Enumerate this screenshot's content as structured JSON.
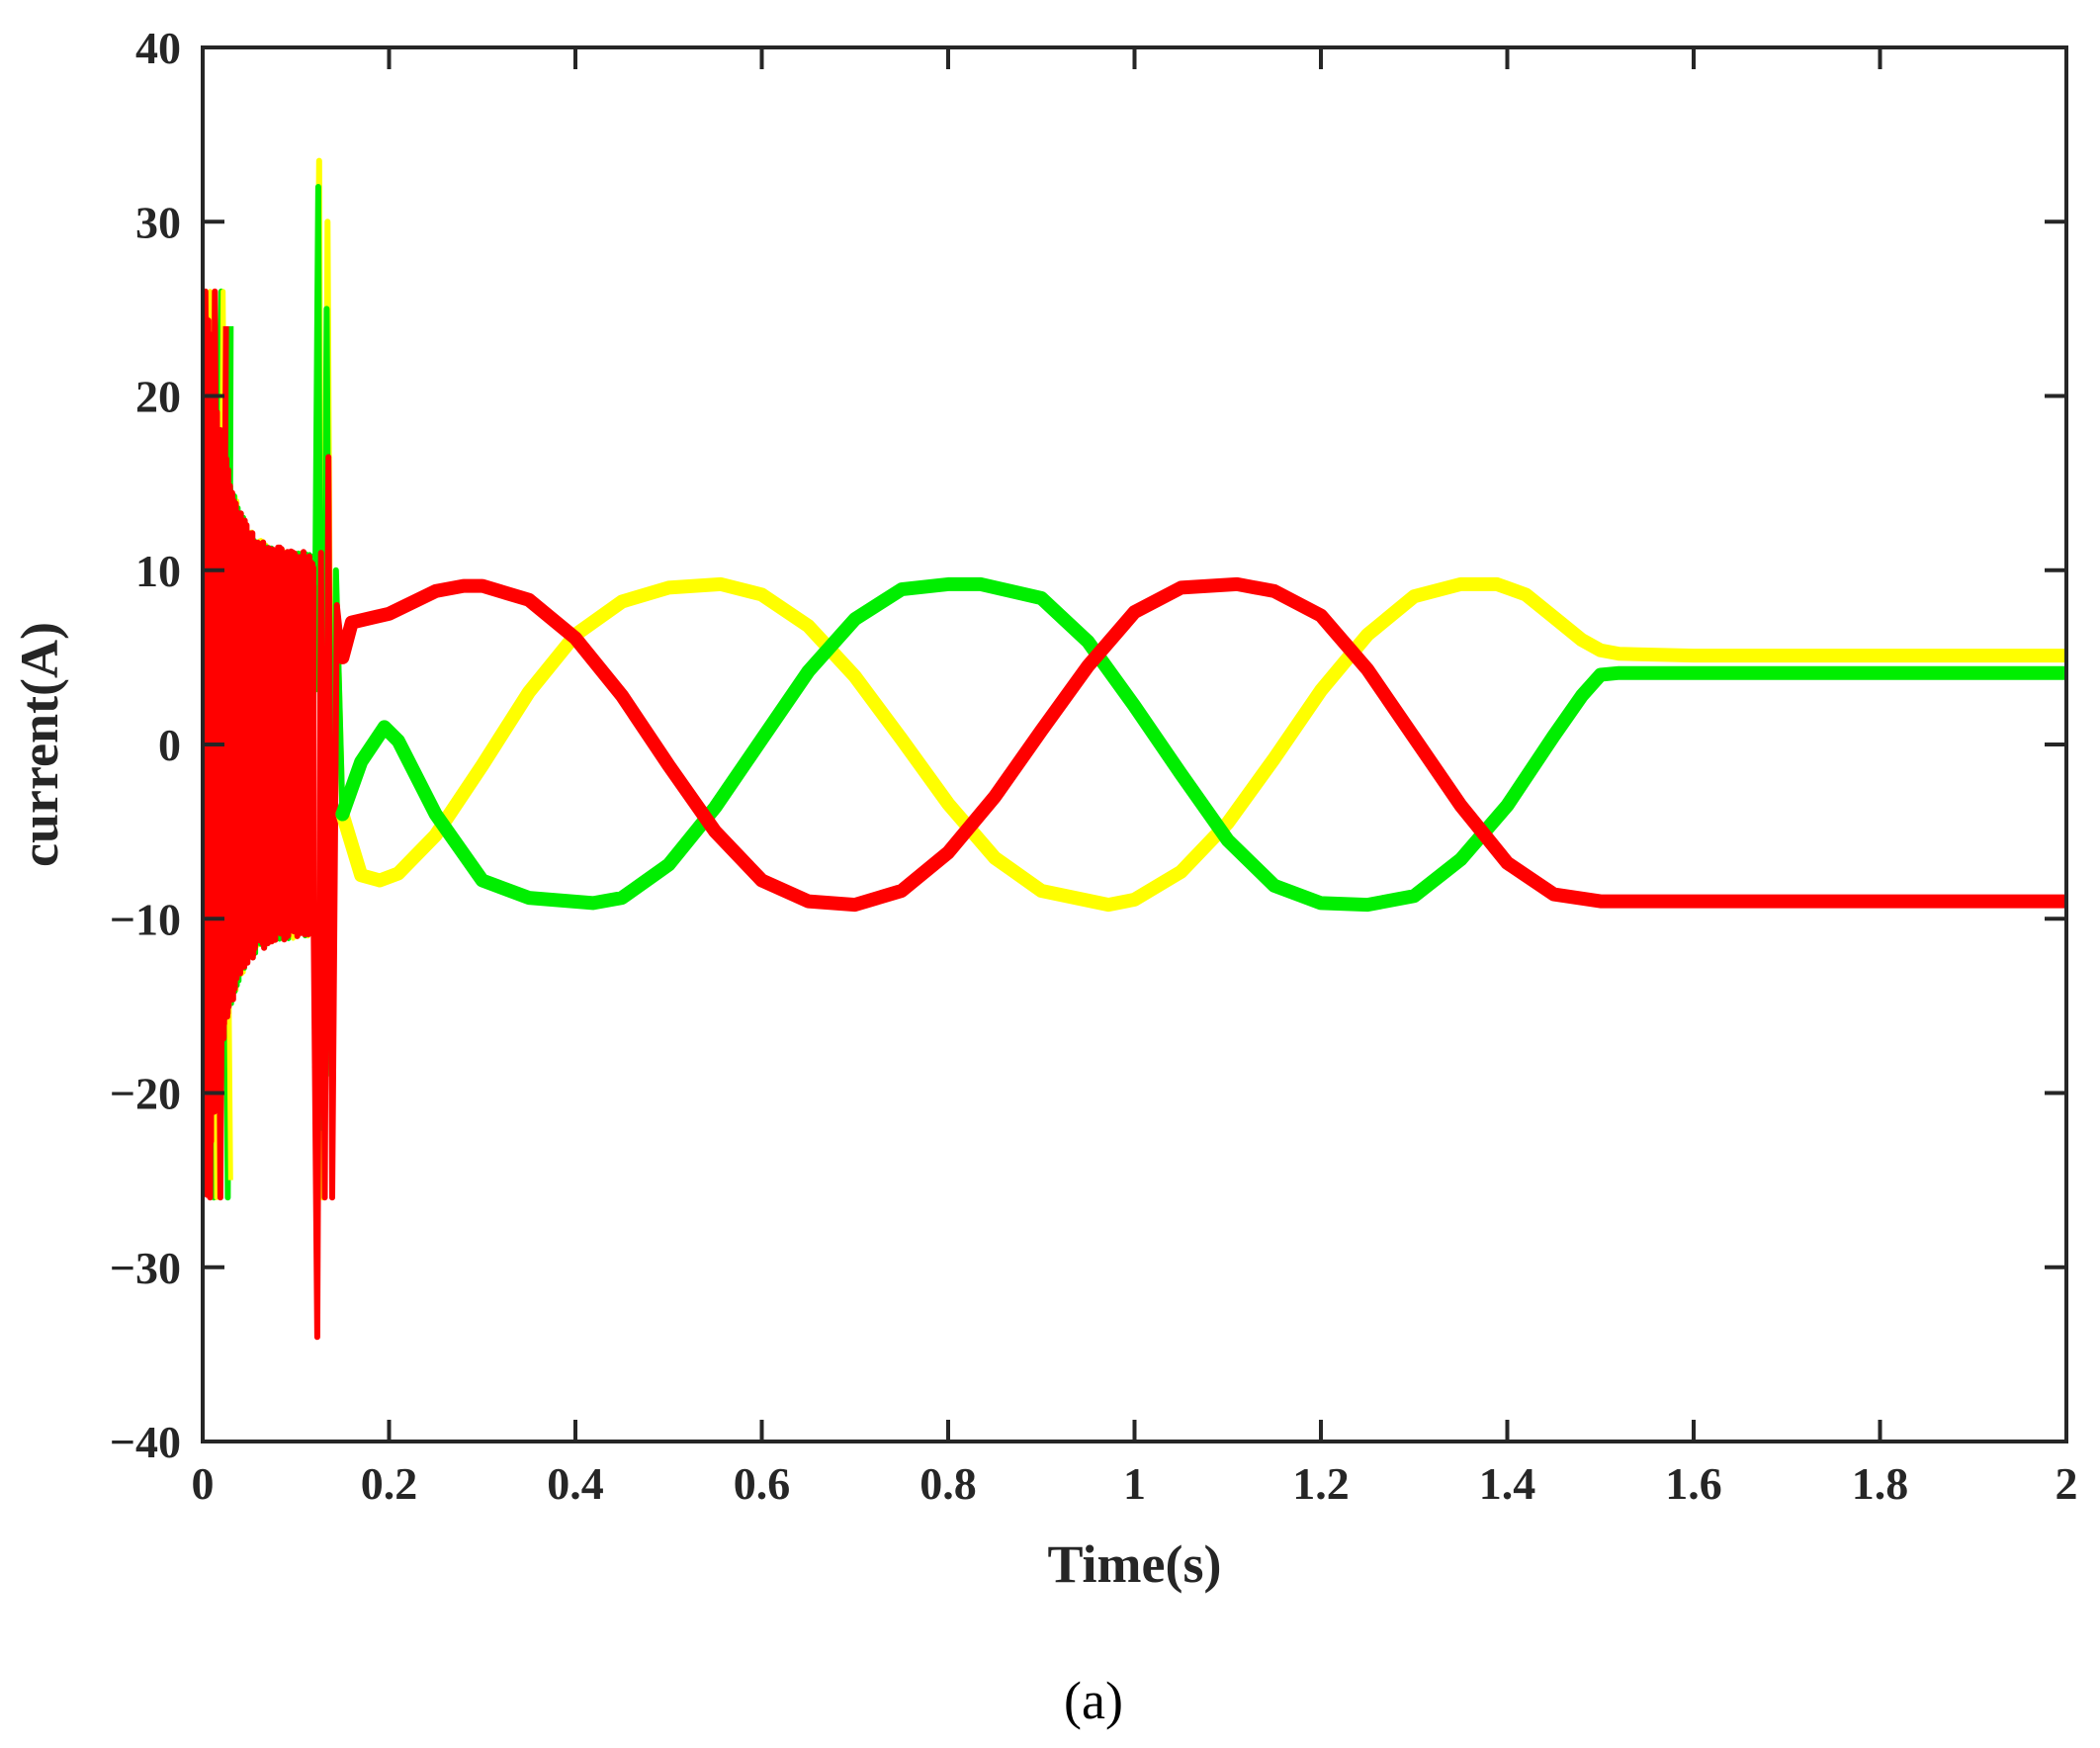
{
  "chart_data": {
    "type": "line",
    "xlabel": "Time(s)",
    "ylabel": "current(A)",
    "xlim": [
      0,
      2
    ],
    "ylim": [
      -40,
      40
    ],
    "xticks": [
      0,
      0.2,
      0.4,
      0.6,
      0.8,
      1,
      1.2,
      1.4,
      1.6,
      1.8,
      2
    ],
    "xtick_labels": [
      "0",
      "0.2",
      "0.4",
      "0.6",
      "0.8",
      "1",
      "1.2",
      "1.4",
      "1.6",
      "1.8",
      "2"
    ],
    "yticks": [
      -40,
      -30,
      -20,
      -10,
      0,
      10,
      20,
      30,
      40
    ],
    "ytick_labels": [
      "−40",
      "−30",
      "−20",
      "−10",
      "0",
      "10",
      "20",
      "30",
      "40"
    ],
    "grid": false,
    "caption": "(a)",
    "series": [
      {
        "color": "#ffff00",
        "x": [
          0.15,
          0.17,
          0.19,
          0.21,
          0.25,
          0.3,
          0.35,
          0.4,
          0.45,
          0.5,
          0.556,
          0.6,
          0.65,
          0.7,
          0.75,
          0.8,
          0.85,
          0.9,
          0.972,
          1.0,
          1.05,
          1.1,
          1.15,
          1.2,
          1.25,
          1.3,
          1.35,
          1.389,
          1.42,
          1.45,
          1.48,
          1.5,
          1.52,
          1.6,
          1.7,
          1.8,
          1.9,
          2.0
        ],
        "y": [
          -4.0,
          -7.5,
          -7.8,
          -7.4,
          -5.2,
          -1.2,
          3.0,
          6.3,
          8.2,
          9.0,
          9.2,
          8.6,
          6.8,
          3.9,
          0.3,
          -3.4,
          -6.5,
          -8.4,
          -9.2,
          -8.9,
          -7.3,
          -4.5,
          -0.8,
          3.1,
          6.3,
          8.5,
          9.2,
          9.2,
          8.6,
          7.3,
          6.0,
          5.4,
          5.2,
          5.1,
          5.1,
          5.1,
          5.1,
          5.1
        ]
      },
      {
        "color": "#00ee00",
        "x": [
          0.15,
          0.17,
          0.195,
          0.21,
          0.25,
          0.3,
          0.35,
          0.419,
          0.45,
          0.5,
          0.55,
          0.6,
          0.65,
          0.7,
          0.75,
          0.8,
          0.835,
          0.9,
          0.95,
          1.0,
          1.05,
          1.1,
          1.15,
          1.2,
          1.25,
          1.3,
          1.35,
          1.4,
          1.45,
          1.48,
          1.5,
          1.52,
          1.6,
          1.7,
          1.8,
          1.9,
          2.0
        ],
        "y": [
          -4.0,
          -1.0,
          1.0,
          0.2,
          -4.0,
          -7.8,
          -8.8,
          -9.1,
          -8.8,
          -6.9,
          -3.6,
          0.3,
          4.2,
          7.2,
          8.9,
          9.2,
          9.2,
          8.4,
          5.9,
          2.2,
          -1.7,
          -5.5,
          -8.1,
          -9.1,
          -9.2,
          -8.7,
          -6.6,
          -3.5,
          0.5,
          2.8,
          4.0,
          4.1,
          4.1,
          4.1,
          4.1,
          4.1,
          4.1
        ]
      },
      {
        "color": "#ff0000",
        "x": [
          0.15,
          0.16,
          0.2,
          0.25,
          0.28,
          0.3,
          0.35,
          0.4,
          0.45,
          0.5,
          0.55,
          0.6,
          0.65,
          0.7,
          0.75,
          0.8,
          0.85,
          0.9,
          0.95,
          1.0,
          1.05,
          1.11,
          1.15,
          1.2,
          1.25,
          1.3,
          1.35,
          1.4,
          1.45,
          1.5,
          1.52,
          1.6,
          1.7,
          1.8,
          1.9,
          2.0
        ],
        "y": [
          5.0,
          7.0,
          7.5,
          8.8,
          9.1,
          9.1,
          8.3,
          6.1,
          2.8,
          -1.2,
          -5.0,
          -7.8,
          -9.0,
          -9.2,
          -8.4,
          -6.2,
          -3.0,
          0.8,
          4.5,
          7.6,
          9.0,
          9.2,
          8.8,
          7.4,
          4.3,
          0.4,
          -3.5,
          -6.8,
          -8.6,
          -9.0,
          -9.0,
          -9.0,
          -9.0,
          -9.0,
          -9.0,
          -9.0
        ]
      }
    ]
  }
}
